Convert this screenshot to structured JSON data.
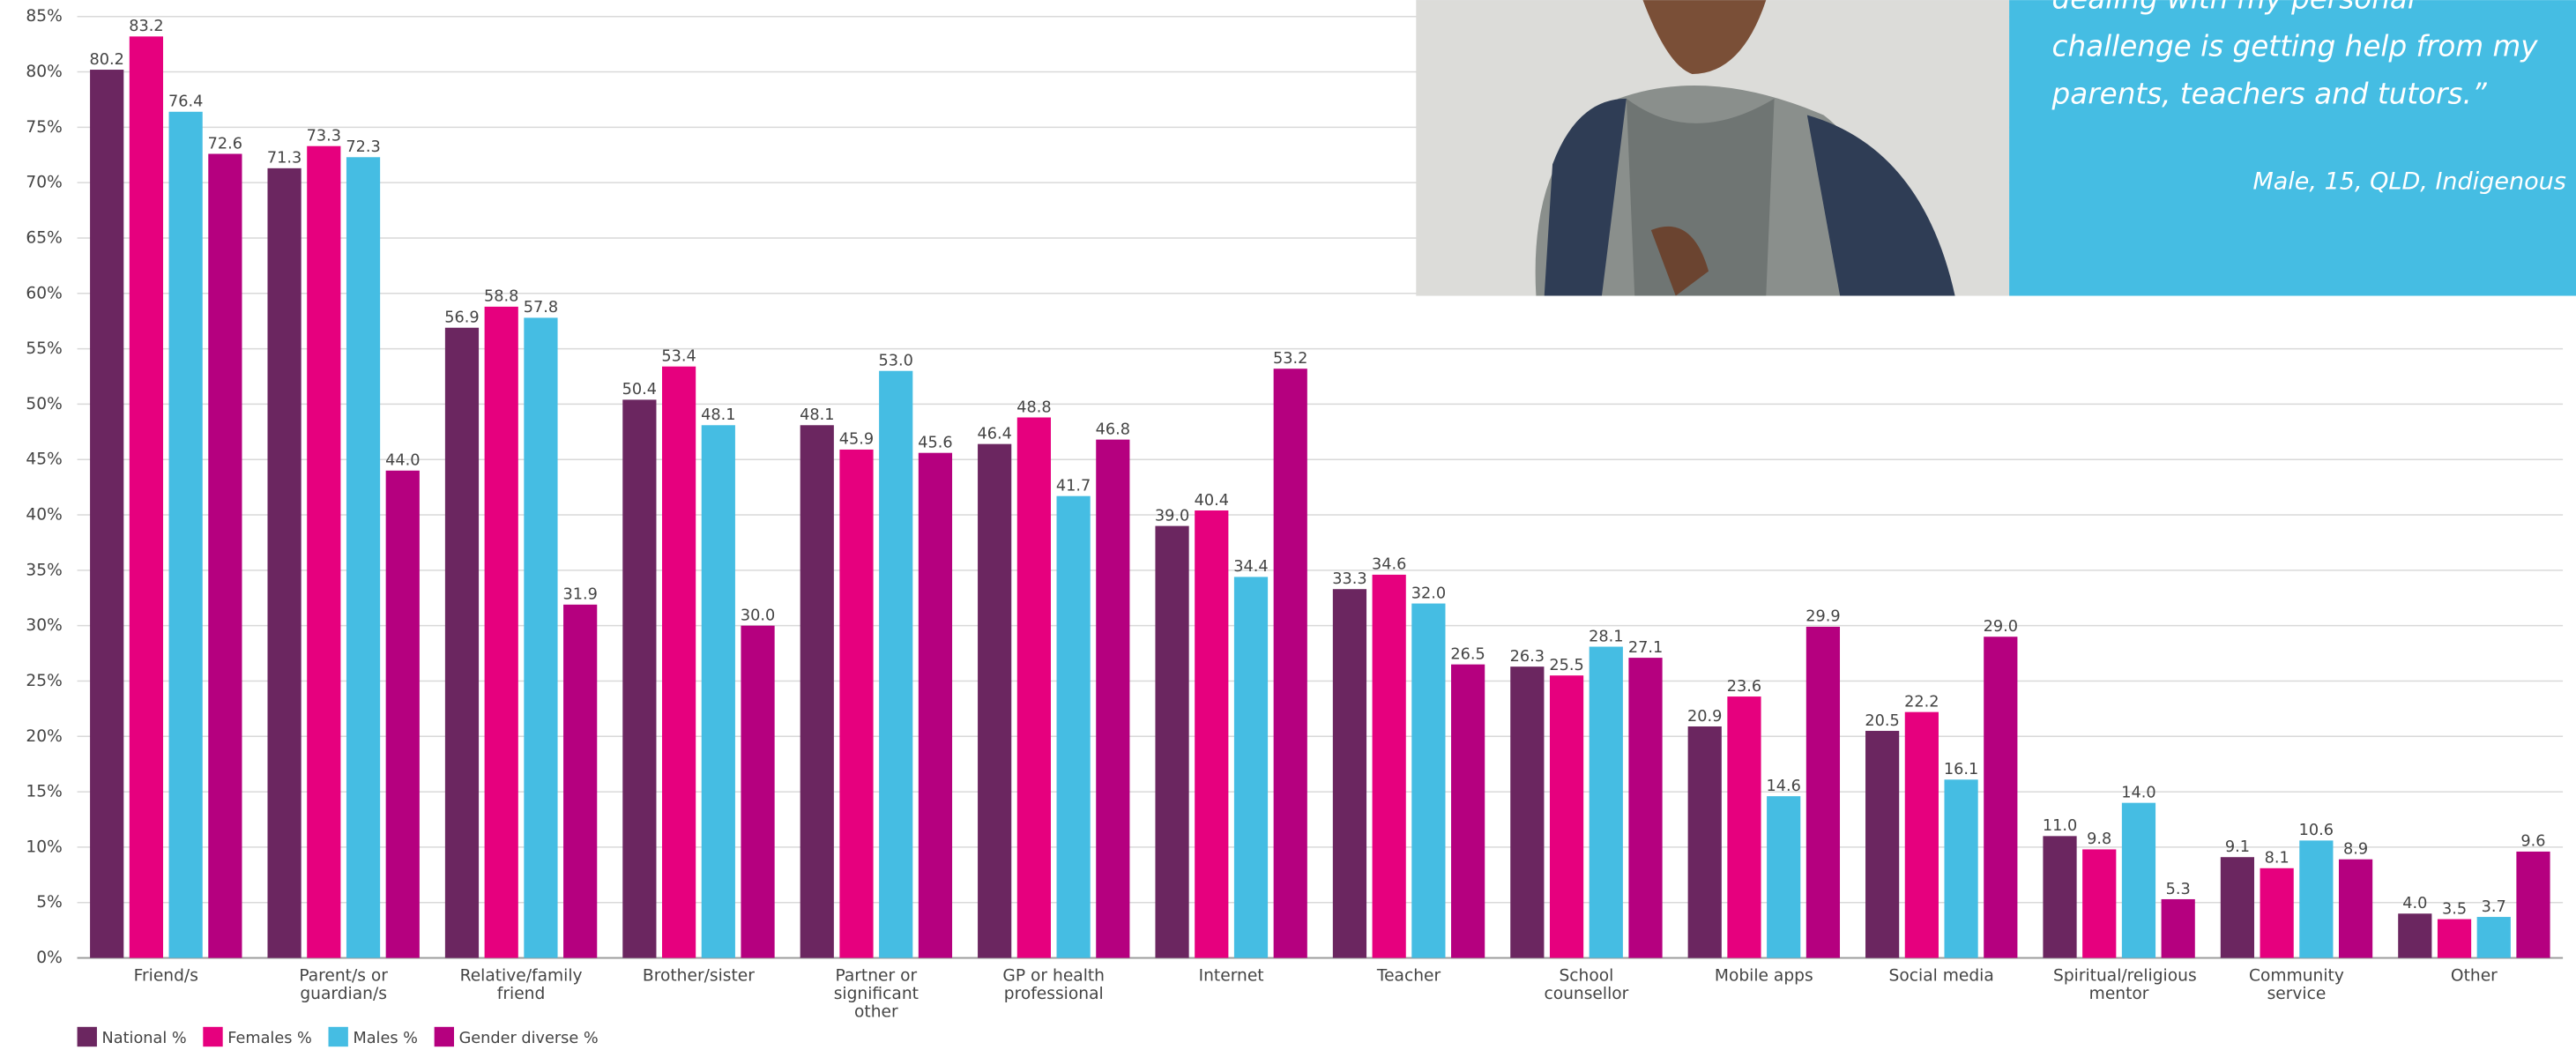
{
  "chart_data": {
    "type": "bar",
    "categories": [
      "Friend/s",
      "Parent/s or guardian/s",
      "Relative/family friend",
      "Brother/sister",
      "Partner or significant other",
      "GP or health professional",
      "Internet",
      "Teacher",
      "School counsellor",
      "Mobile apps",
      "Social media",
      "Spiritual/religious mentor",
      "Community service",
      "Other"
    ],
    "series": [
      {
        "name": "National %",
        "color": "#6b2660",
        "values": [
          80.2,
          71.3,
          56.9,
          50.4,
          48.1,
          46.4,
          39.0,
          33.3,
          26.3,
          20.9,
          20.5,
          11.0,
          9.1,
          4.0
        ],
        "value_labels": [
          "80.2",
          "71.3",
          "56.9",
          "50.4",
          "48.1",
          "46.4",
          "39.0",
          "33.3",
          "26.3",
          "20.9",
          "20.5",
          "11.0",
          "9.1",
          "4.0"
        ]
      },
      {
        "name": "Females %",
        "color": "#e6007e",
        "values": [
          83.2,
          73.3,
          58.8,
          53.4,
          45.9,
          48.8,
          40.4,
          34.6,
          25.5,
          23.6,
          22.2,
          9.8,
          8.1,
          3.5
        ],
        "value_labels": [
          "83.2",
          "73.3",
          "58.8",
          "53.4",
          "45.9",
          "48.8",
          "40.4",
          "34.6",
          "25.5",
          "23.6",
          "22.2",
          "9.8",
          "8.1",
          "3.5"
        ]
      },
      {
        "name": "Males %",
        "color": "#45bde3",
        "values": [
          76.4,
          72.3,
          57.8,
          48.1,
          53.0,
          41.7,
          34.4,
          32.0,
          28.1,
          14.6,
          16.1,
          14.0,
          10.6,
          3.7
        ],
        "value_labels": [
          "76.4",
          "72.3",
          "57.8",
          "48.1",
          "53.0",
          "41.7",
          "34.4",
          "32.0",
          "28.1",
          "14.6",
          "16.1",
          "14.0",
          "10.6",
          "3.7"
        ]
      },
      {
        "name": "Gender diverse %",
        "color": "#b5007f",
        "values": [
          72.6,
          44.0,
          31.9,
          30.0,
          45.6,
          46.8,
          53.2,
          26.5,
          27.1,
          29.9,
          29.0,
          5.3,
          8.9,
          9.6
        ],
        "value_labels": [
          "72.6",
          "44.0",
          "31.9",
          "30.0",
          "45.6",
          "46.8",
          "53.2",
          "26.5",
          "27.1",
          "29.9",
          "29.0",
          "5.3",
          "8.9",
          "9.6"
        ]
      }
    ],
    "ylim": [
      0,
      85
    ],
    "yticks": [
      {
        "value": 0,
        "label": "0%"
      },
      {
        "value": 5,
        "label": "5%"
      },
      {
        "value": 10,
        "label": "10%"
      },
      {
        "value": 15,
        "label": "15%"
      },
      {
        "value": 20,
        "label": "20%"
      },
      {
        "value": 25,
        "label": "25%"
      },
      {
        "value": 30,
        "label": "30%"
      },
      {
        "value": 35,
        "label": "35%"
      },
      {
        "value": 40,
        "label": "40%"
      },
      {
        "value": 45,
        "label": "45%"
      },
      {
        "value": 50,
        "label": "50%"
      },
      {
        "value": 55,
        "label": "55%"
      },
      {
        "value": 60,
        "label": "60%"
      },
      {
        "value": 65,
        "label": "65%"
      },
      {
        "value": 70,
        "label": "70%"
      },
      {
        "value": 75,
        "label": "75%"
      },
      {
        "value": 80,
        "label": "80%"
      },
      {
        "value": 85,
        "label": "85%"
      }
    ],
    "grid": true,
    "legend": "bottom-left"
  },
  "quote": {
    "text": "dealing with my personal challenge is getting help from my parents, teachers and tutors.”",
    "attribution": "Male, 15, QLD, Indigenous"
  }
}
